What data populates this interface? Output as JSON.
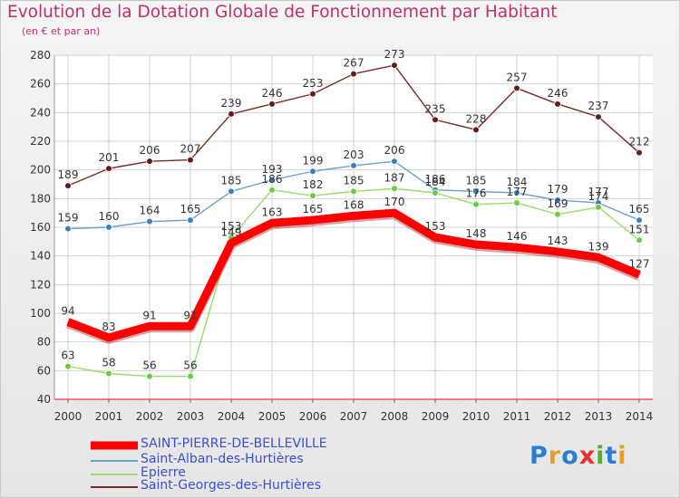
{
  "title": "Evolution de la Dotation Globale de Fonctionnement par Habitant",
  "subtitle": "(en € et par an)",
  "colors": {
    "title": "#c0306a",
    "legend_text": "#3d4fcf",
    "axis": "#ff0000",
    "grid": "#d2d2d2"
  },
  "chart_data": {
    "type": "line",
    "title": "Evolution de la Dotation Globale de Fonctionnement par Habitant",
    "subtitle": "(en € et par an)",
    "xlabel": "",
    "ylabel": "",
    "x": [
      "2000",
      "2001",
      "2002",
      "2003",
      "2004",
      "2005",
      "2006",
      "2007",
      "2008",
      "2009",
      "2010",
      "2011",
      "2012",
      "2013",
      "2014"
    ],
    "ylim": [
      40,
      280
    ],
    "yticks": [
      40,
      60,
      80,
      100,
      120,
      140,
      160,
      180,
      200,
      220,
      240,
      260,
      280
    ],
    "grid": true,
    "legend_position": "bottom-left",
    "series": [
      {
        "name": "Saint-Georges-des-Hurtières",
        "color": "#7a2a2a",
        "marker": "#6a1a1a",
        "values": [
          189,
          201,
          206,
          207,
          239,
          246,
          253,
          267,
          273,
          235,
          228,
          257,
          246,
          237,
          212
        ]
      },
      {
        "name": "Saint-Alban-des-Hurtières",
        "color": "#6aa0cc",
        "marker": "#3a7fc0",
        "values": [
          159,
          160,
          164,
          165,
          185,
          193,
          199,
          203,
          206,
          186,
          185,
          184,
          179,
          177,
          165
        ]
      },
      {
        "name": "Epierre",
        "color": "#96de6a",
        "marker": "#6acd3a",
        "values": [
          63,
          58,
          56,
          56,
          153,
          186,
          182,
          185,
          187,
          184,
          176,
          177,
          169,
          174,
          151
        ]
      },
      {
        "name": "SAINT-PIERRE-DE-BELLEVILLE",
        "color": "#ff0000",
        "marker": "#ff0000",
        "values": [
          94,
          83,
          91,
          91,
          149,
          163,
          165,
          168,
          170,
          153,
          148,
          146,
          143,
          139,
          127
        ]
      }
    ]
  },
  "legend": [
    {
      "label": "SAINT-PIERRE-DE-BELLEVILLE",
      "color": "#ff0000"
    },
    {
      "label": "Saint-Alban-des-Hurtières",
      "color": "#6aa0cc"
    },
    {
      "label": "Epierre",
      "color": "#96de6a"
    },
    {
      "label": "Saint-Georges-des-Hurtières",
      "color": "#7a2a2a"
    }
  ],
  "logo": {
    "letters": [
      "P",
      "r",
      "o",
      "x",
      "i",
      "t",
      "i"
    ],
    "colors": [
      "#2a7fd0",
      "#e8a020",
      "#2a7fd0",
      "#e83030",
      "#50b030",
      "#2a7fd0",
      "#e8a020"
    ]
  }
}
